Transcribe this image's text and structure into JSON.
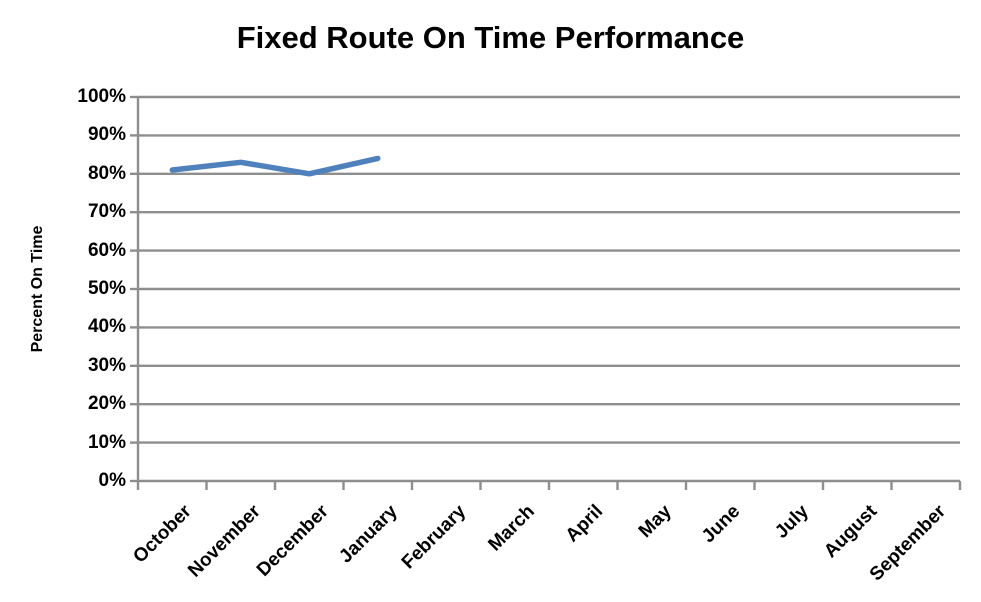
{
  "chart_data": {
    "type": "line",
    "title": "Fixed Route On Time Performance",
    "xlabel": "",
    "ylabel": "Percent On Time",
    "categories": [
      "October",
      "November",
      "December",
      "January",
      "February",
      "March",
      "April",
      "May",
      "June",
      "July",
      "August",
      "September"
    ],
    "series": [
      {
        "values": [
          81,
          83,
          80,
          84,
          null,
          null,
          null,
          null,
          null,
          null,
          null,
          null
        ],
        "color": "#4F81BD"
      }
    ],
    "ylim": [
      0,
      100
    ],
    "ytick_step": 10,
    "ytick_labels": [
      "0%",
      "10%",
      "20%",
      "30%",
      "40%",
      "50%",
      "60%",
      "70%",
      "80%",
      "90%",
      "100%"
    ],
    "grid": "horizontal-only",
    "legend": "none",
    "colors": {
      "line": "#4F81BD",
      "axis": "#8E8E8E",
      "grid": "#8E8E8E",
      "text": "#000000",
      "background": "#FFFFFF"
    }
  }
}
